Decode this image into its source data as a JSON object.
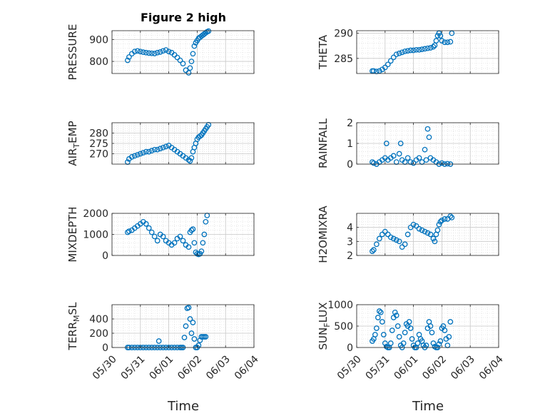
{
  "figure_title": "Figure 2 high",
  "shared_x_label": "Time",
  "marker_color": "#0072BD",
  "x_tick_labels": [
    "05/30",
    "05/31",
    "06/01",
    "06/02",
    "06/03",
    "06/04"
  ],
  "chart_data": [
    {
      "type": "scatter",
      "ylabel": "PRESSURE",
      "ylim": [
        745,
        940
      ],
      "yticks": [
        800,
        900
      ],
      "grid": true,
      "minor_grid": true,
      "show_xticklabels": false,
      "x": [
        0.55,
        0.6,
        0.7,
        0.8,
        0.9,
        1.0,
        1.1,
        1.2,
        1.3,
        1.4,
        1.5,
        1.6,
        1.7,
        1.8,
        1.9,
        2.0,
        2.1,
        2.2,
        2.3,
        2.4,
        2.5,
        2.6,
        2.7,
        2.75,
        2.8,
        2.85,
        2.9,
        2.95,
        3.0,
        3.05,
        3.1,
        3.15,
        3.2,
        3.25,
        3.3,
        3.35,
        3.4
      ],
      "y": [
        805,
        820,
        835,
        845,
        848,
        845,
        842,
        840,
        838,
        837,
        836,
        840,
        843,
        848,
        852,
        845,
        840,
        830,
        818,
        805,
        790,
        760,
        748,
        770,
        800,
        835,
        870,
        885,
        895,
        905,
        910,
        915,
        920,
        925,
        930,
        935,
        938
      ]
    },
    {
      "type": "scatter",
      "ylabel": "THETA",
      "ylim": [
        282,
        290.5
      ],
      "yticks": [
        285,
        290
      ],
      "grid": true,
      "minor_grid": true,
      "show_xticklabels": false,
      "x": [
        0.55,
        0.6,
        0.7,
        0.8,
        0.9,
        1.0,
        1.1,
        1.2,
        1.3,
        1.4,
        1.5,
        1.6,
        1.7,
        1.8,
        1.9,
        2.0,
        2.1,
        2.2,
        2.3,
        2.4,
        2.5,
        2.6,
        2.7,
        2.75,
        2.8,
        2.85,
        2.9,
        2.95,
        3.0,
        3.1,
        3.2,
        3.3,
        3.35
      ],
      "y": [
        282.5,
        282.5,
        282.4,
        282.5,
        282.8,
        283.2,
        283.8,
        284.5,
        285.2,
        285.8,
        286.0,
        286.2,
        286.4,
        286.5,
        286.6,
        286.6,
        286.7,
        286.7,
        286.8,
        286.9,
        287.0,
        287.1,
        287.3,
        287.6,
        288.5,
        289.5,
        290.0,
        289.5,
        288.5,
        288.2,
        288.2,
        288.3,
        290.0
      ]
    },
    {
      "type": "scatter",
      "ylabel": "AIR_TEMP",
      "ylim": [
        265,
        285
      ],
      "yticks": [
        270,
        275,
        280
      ],
      "grid": true,
      "minor_grid": true,
      "show_xticklabels": false,
      "x": [
        0.55,
        0.6,
        0.7,
        0.8,
        0.9,
        1.0,
        1.1,
        1.2,
        1.3,
        1.4,
        1.5,
        1.6,
        1.7,
        1.8,
        1.9,
        2.0,
        2.1,
        2.2,
        2.3,
        2.4,
        2.5,
        2.6,
        2.7,
        2.75,
        2.8,
        2.85,
        2.9,
        2.95,
        3.0,
        3.05,
        3.1,
        3.15,
        3.2,
        3.25,
        3.3,
        3.35,
        3.4
      ],
      "y": [
        266,
        267.5,
        268.5,
        269,
        269.5,
        270,
        270.5,
        271,
        271,
        271.5,
        272,
        272,
        272.5,
        273,
        273.5,
        274,
        273,
        272,
        271,
        270,
        269,
        268,
        267,
        266.5,
        268,
        271,
        273,
        275,
        277,
        278,
        278.5,
        279,
        280,
        281,
        282,
        283,
        284
      ]
    },
    {
      "type": "scatter",
      "ylabel": "RAINFALL",
      "ylim": [
        0,
        2
      ],
      "yticks": [
        0,
        1,
        2
      ],
      "grid": true,
      "minor_grid": true,
      "show_xticklabels": false,
      "x": [
        0.55,
        0.6,
        0.7,
        0.8,
        0.9,
        1.0,
        1.05,
        1.1,
        1.2,
        1.3,
        1.4,
        1.5,
        1.55,
        1.6,
        1.7,
        1.8,
        1.9,
        2.0,
        2.1,
        2.2,
        2.3,
        2.4,
        2.45,
        2.5,
        2.55,
        2.6,
        2.7,
        2.8,
        2.9,
        3.0,
        3.1,
        3.2,
        3.3
      ],
      "y": [
        0.1,
        0.05,
        0,
        0.1,
        0.2,
        0.3,
        1.0,
        0.2,
        0.3,
        0.4,
        0.1,
        0.5,
        1.0,
        0.2,
        0.1,
        0.3,
        0.1,
        0.05,
        0.2,
        0.3,
        0.1,
        0.7,
        0.2,
        1.7,
        1.3,
        0.3,
        0.2,
        0.1,
        0,
        0.05,
        0,
        0.02,
        0
      ]
    },
    {
      "type": "scatter",
      "ylabel": "MIXDEPTH",
      "ylim": [
        0,
        2000
      ],
      "yticks": [
        0,
        1000,
        2000
      ],
      "grid": true,
      "minor_grid": true,
      "show_xticklabels": false,
      "x": [
        0.55,
        0.6,
        0.7,
        0.8,
        0.9,
        1.0,
        1.1,
        1.2,
        1.3,
        1.4,
        1.5,
        1.6,
        1.7,
        1.8,
        1.9,
        2.0,
        2.1,
        2.2,
        2.3,
        2.4,
        2.5,
        2.6,
        2.7,
        2.75,
        2.8,
        2.85,
        2.9,
        2.95,
        3.0,
        3.05,
        3.1,
        3.15,
        3.2,
        3.25,
        3.3,
        3.35
      ],
      "y": [
        1100,
        1150,
        1200,
        1300,
        1400,
        1500,
        1600,
        1500,
        1300,
        1100,
        900,
        700,
        1000,
        900,
        700,
        600,
        500,
        600,
        800,
        900,
        700,
        500,
        400,
        1100,
        1200,
        1250,
        600,
        150,
        80,
        50,
        80,
        200,
        600,
        1000,
        1600,
        1900
      ]
    },
    {
      "type": "scatter",
      "ylabel": "H2OMIXRA",
      "ylim": [
        2,
        5
      ],
      "yticks": [
        2,
        3,
        4
      ],
      "grid": true,
      "minor_grid": true,
      "show_xticklabels": false,
      "x": [
        0.55,
        0.6,
        0.7,
        0.8,
        0.9,
        1.0,
        1.1,
        1.2,
        1.3,
        1.4,
        1.5,
        1.6,
        1.7,
        1.8,
        1.9,
        2.0,
        2.1,
        2.2,
        2.3,
        2.4,
        2.5,
        2.6,
        2.7,
        2.75,
        2.8,
        2.85,
        2.9,
        2.95,
        3.0,
        3.1,
        3.2,
        3.3,
        3.35
      ],
      "y": [
        2.3,
        2.4,
        2.8,
        3.2,
        3.5,
        3.7,
        3.5,
        3.3,
        3.2,
        3.1,
        3.0,
        2.6,
        2.8,
        3.5,
        4.0,
        4.2,
        4.1,
        3.9,
        3.8,
        3.7,
        3.6,
        3.5,
        3.2,
        3.0,
        3.5,
        3.8,
        4.2,
        4.4,
        4.5,
        4.6,
        4.6,
        4.8,
        4.7
      ]
    },
    {
      "type": "scatter",
      "ylabel": "TERR_MSL",
      "ylim": [
        0,
        600
      ],
      "yticks": [
        0,
        200,
        400
      ],
      "grid": true,
      "minor_grid": true,
      "show_xticklabels": true,
      "x": [
        0.55,
        0.6,
        0.7,
        0.8,
        0.9,
        1.0,
        1.1,
        1.2,
        1.3,
        1.4,
        1.5,
        1.6,
        1.65,
        1.7,
        1.8,
        1.9,
        2.0,
        2.1,
        2.2,
        2.3,
        2.4,
        2.45,
        2.5,
        2.55,
        2.6,
        2.65,
        2.7,
        2.75,
        2.8,
        2.85,
        2.9,
        2.95,
        3.0,
        3.05,
        3.1,
        3.15,
        3.2,
        3.25,
        3.3
      ],
      "y": [
        0,
        0,
        0,
        0,
        0,
        0,
        0,
        0,
        0,
        0,
        0,
        0,
        90,
        0,
        0,
        0,
        0,
        0,
        0,
        0,
        0,
        0,
        0,
        140,
        300,
        550,
        560,
        400,
        200,
        350,
        120,
        0,
        0,
        30,
        100,
        150,
        150,
        150,
        150
      ]
    },
    {
      "type": "scatter",
      "ylabel": "SUN_FLUX",
      "ylim": [
        0,
        1000
      ],
      "yticks": [
        0,
        500,
        1000
      ],
      "grid": true,
      "minor_grid": true,
      "show_xticklabels": true,
      "x": [
        0.55,
        0.6,
        0.65,
        0.7,
        0.75,
        0.8,
        0.85,
        0.9,
        0.95,
        1.0,
        1.05,
        1.1,
        1.15,
        1.2,
        1.25,
        1.3,
        1.35,
        1.4,
        1.45,
        1.5,
        1.55,
        1.6,
        1.65,
        1.7,
        1.75,
        1.8,
        1.85,
        1.9,
        1.95,
        2.0,
        2.05,
        2.1,
        2.15,
        2.2,
        2.25,
        2.3,
        2.35,
        2.4,
        2.45,
        2.5,
        2.55,
        2.6,
        2.65,
        2.7,
        2.75,
        2.8,
        2.85,
        2.9,
        2.95,
        3.0,
        3.05,
        3.1,
        3.15,
        3.2,
        3.25,
        3.3
      ],
      "y": [
        150,
        200,
        300,
        450,
        700,
        850,
        820,
        600,
        300,
        100,
        20,
        0,
        0,
        100,
        400,
        700,
        820,
        750,
        500,
        250,
        50,
        0,
        100,
        350,
        550,
        500,
        600,
        450,
        200,
        50,
        0,
        0,
        100,
        300,
        200,
        150,
        50,
        0,
        50,
        450,
        600,
        500,
        350,
        100,
        20,
        0,
        0,
        80,
        150,
        450,
        500,
        400,
        200,
        50,
        250,
        600
      ]
    }
  ]
}
